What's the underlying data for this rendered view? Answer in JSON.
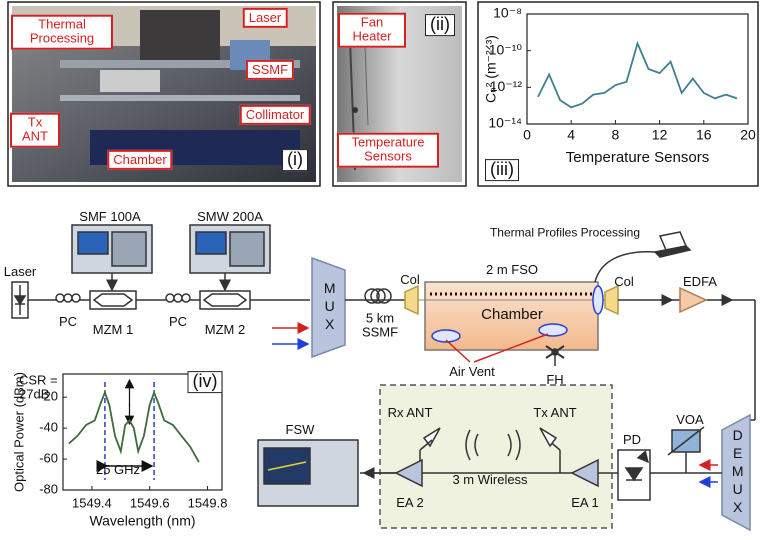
{
  "photo_i": {
    "thermal_processing": "Thermal Processing",
    "laser": "Laser",
    "ssmf": "SSMF",
    "tx_ant": "Tx ANT",
    "collimator": "Collimator",
    "chamber": "Chamber",
    "tag": "(i)"
  },
  "photo_ii": {
    "fan_heater": "Fan Heater",
    "temperature_sensors": "Temperature Sensors",
    "tag": "(ii)"
  },
  "setup": {
    "smf": "SMF 100A",
    "smw": "SMW 200A",
    "laser": "Laser",
    "pc1": "PC",
    "mzm1": "MZM 1",
    "pc2": "PC",
    "mzm2": "MZM 2",
    "mux": "MUX",
    "fiber": "5 km SSMF",
    "thermal": "Thermal Profiles Processing",
    "fso": "2 m FSO",
    "col1": "Col",
    "chamber": "Chamber",
    "col2": "Col",
    "edfa": "EDFA",
    "air_vent": "Air Vent",
    "fh": "FH",
    "fsw": "FSW",
    "rx_ant": "Rx ANT",
    "tx_ant": "Tx ANT",
    "wireless": "3 m Wireless",
    "ea2": "EA 2",
    "ea1": "EA 1",
    "pd": "PD",
    "voa": "VOA",
    "demux": "DEMUX"
  },
  "chart_data": [
    {
      "type": "line",
      "tag": "(iii)",
      "x_label": "Temperature Sensors",
      "y_label": "Cₙ² (m⁻²ᐟ³)",
      "x": [
        1,
        2,
        3,
        4,
        5,
        6,
        7,
        8,
        9,
        10,
        11,
        12,
        13,
        14,
        15,
        16,
        17,
        18,
        19
      ],
      "values": [
        3e-13,
        5e-12,
        2e-13,
        8e-14,
        1.3e-13,
        4e-13,
        5e-13,
        1.3e-12,
        2e-12,
        2.5e-10,
        1e-11,
        6e-12,
        2.5e-11,
        5e-13,
        3e-12,
        5e-13,
        2.5e-13,
        4e-13,
        2.5e-13
      ],
      "color": "#3f7f8f",
      "log_y": true,
      "xlim": [
        0,
        20
      ],
      "xticks": [
        0,
        4,
        8,
        12,
        16,
        20
      ],
      "ylim": [
        1e-14,
        1e-08
      ],
      "yticks": [
        {
          "value": 1e-08,
          "label": "10⁻⁸"
        },
        {
          "value": 1e-10,
          "label": "10⁻¹⁰"
        },
        {
          "value": 1e-12,
          "label": "10⁻¹²"
        },
        {
          "value": 1e-14,
          "label": "10⁻¹⁴"
        }
      ]
    },
    {
      "type": "line",
      "tag": "(iv)",
      "x_label": "Wavelength (nm)",
      "y_label": "Optical Power (dBm)",
      "x": [
        1549.32,
        1549.35,
        1549.38,
        1549.41,
        1549.43,
        1549.445,
        1549.46,
        1549.48,
        1549.5,
        1549.515,
        1549.53,
        1549.545,
        1549.56,
        1549.58,
        1549.6,
        1549.615,
        1549.63,
        1549.65,
        1549.68,
        1549.71,
        1549.74,
        1549.77
      ],
      "values": [
        -50,
        -45,
        -38,
        -35,
        -24,
        -17,
        -25,
        -45,
        -55,
        -38,
        -35,
        -40,
        -55,
        -45,
        -25,
        -17,
        -24,
        -35,
        -38,
        -45,
        -52,
        -62
      ],
      "color": "#3d6b3a",
      "log_y": false,
      "markers_x": [
        1549.445,
        1549.615
      ],
      "marker_color": "#2a3fd0",
      "annotations": {
        "csr": "CSR = 27dB",
        "spacing": "25 GHz"
      },
      "xlim": [
        1549.3,
        1549.85
      ],
      "xticks": [
        1549.4,
        1549.6,
        1549.8
      ],
      "ylim": [
        -80,
        -5
      ],
      "yticks": [
        -20,
        -40,
        -60,
        -80
      ]
    }
  ]
}
